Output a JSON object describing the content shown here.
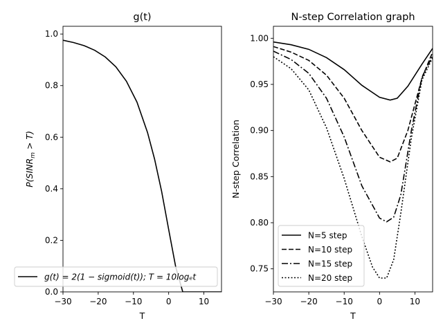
{
  "chart_data": [
    {
      "type": "line",
      "title": "g(t)",
      "xlabel": "T",
      "ylabel_parts": [
        "P(SINR",
        "m",
        " > T)"
      ],
      "xlim": [
        -30,
        15
      ],
      "ylim": [
        0.0,
        1.03
      ],
      "xticks": [
        -30,
        -20,
        -10,
        0,
        10
      ],
      "xtick_labels": [
        "−30",
        "−20",
        "−10",
        "0",
        "10"
      ],
      "yticks": [
        0.0,
        0.2,
        0.4,
        0.6,
        0.8,
        1.0
      ],
      "ytick_labels": [
        "0.0",
        "0.2",
        "0.4",
        "0.6",
        "0.8",
        "1.0"
      ],
      "legend_position": "lower-left",
      "series": [
        {
          "name": "g(t) = 2(1 − sigmoid(t)); T = 10logₑt",
          "style": "solid",
          "x": [
            -30,
            -27,
            -24,
            -21,
            -18,
            -15,
            -12,
            -9,
            -6,
            -4,
            -2,
            0,
            2,
            4,
            6,
            8,
            10,
            12,
            15
          ],
          "y": [
            0.976,
            0.967,
            0.955,
            0.937,
            0.911,
            0.873,
            0.817,
            0.736,
            0.618,
            0.515,
            0.39,
            0.242,
            0.097,
            0.0,
            0.0,
            0.0,
            0.0,
            0.0,
            0.0
          ]
        }
      ]
    },
    {
      "type": "line",
      "title": "N-step Correlation graph",
      "xlabel": "T",
      "ylabel": "N-step Correlation",
      "xlim": [
        -30,
        15
      ],
      "ylim": [
        0.725,
        1.013
      ],
      "xticks": [
        -30,
        -20,
        -10,
        0,
        10
      ],
      "xtick_labels": [
        "−30",
        "−20",
        "−10",
        "0",
        "10"
      ],
      "yticks": [
        0.75,
        0.8,
        0.85,
        0.9,
        0.95,
        1.0
      ],
      "ytick_labels": [
        "0.75",
        "0.80",
        "0.85",
        "0.90",
        "0.95",
        "1.00"
      ],
      "legend_position": "lower-left",
      "series": [
        {
          "name": "N=5 step",
          "style": "solid",
          "x": [
            -30,
            -25,
            -20,
            -15,
            -10,
            -5,
            0,
            3,
            5,
            8,
            12,
            15
          ],
          "y": [
            0.996,
            0.993,
            0.988,
            0.979,
            0.966,
            0.949,
            0.936,
            0.933,
            0.935,
            0.948,
            0.972,
            0.989
          ]
        },
        {
          "name": "N=10 step",
          "style": "dashed",
          "x": [
            -30,
            -25,
            -20,
            -15,
            -10,
            -5,
            0,
            3,
            5,
            8,
            12,
            15
          ],
          "y": [
            0.991,
            0.985,
            0.976,
            0.96,
            0.935,
            0.9,
            0.871,
            0.866,
            0.87,
            0.9,
            0.957,
            0.985
          ]
        },
        {
          "name": "N=15 step",
          "style": "dashdot",
          "x": [
            -30,
            -25,
            -20,
            -15,
            -10,
            -5,
            0,
            2,
            4,
            6,
            9,
            12,
            15
          ],
          "y": [
            0.986,
            0.977,
            0.962,
            0.935,
            0.893,
            0.84,
            0.805,
            0.801,
            0.806,
            0.83,
            0.9,
            0.958,
            0.981
          ]
        },
        {
          "name": "N=20 step",
          "style": "dotted",
          "x": [
            -30,
            -25,
            -20,
            -15,
            -10,
            -5,
            -2,
            0,
            2,
            4,
            6,
            9,
            12,
            15
          ],
          "y": [
            0.98,
            0.967,
            0.944,
            0.903,
            0.848,
            0.785,
            0.752,
            0.74,
            0.74,
            0.76,
            0.81,
            0.892,
            0.955,
            0.979
          ]
        }
      ]
    }
  ]
}
